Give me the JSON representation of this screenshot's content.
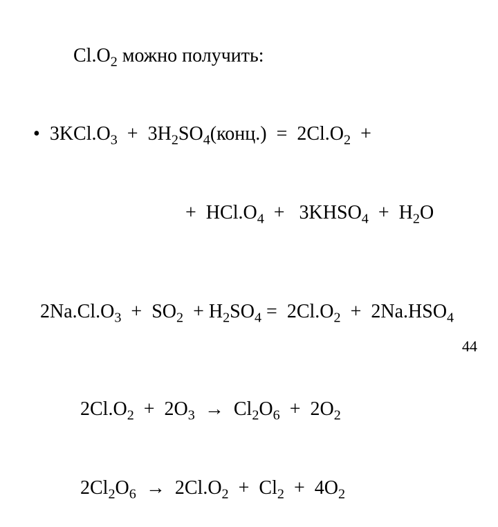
{
  "text_color": "#000000",
  "background_color": "#ffffff",
  "font_family": "Times New Roman",
  "base_fontsize_pt": 21,
  "page_number": "44",
  "title": {
    "compound": "Cl.O",
    "compound_sub": "2",
    "rest": " можно получить:"
  },
  "eq1": {
    "bullet": "•  ",
    "l1_parts": [
      {
        "t": "3KCl.O"
      },
      {
        "s": "3"
      },
      {
        "t": "  +  3H"
      },
      {
        "s": "2"
      },
      {
        "t": "SO"
      },
      {
        "s": "4"
      },
      {
        "t": "(конц.)  =  2Cl.O"
      },
      {
        "s": "2"
      },
      {
        "t": "  +"
      }
    ],
    "l2_parts": [
      {
        "t": "+  HCl.O"
      },
      {
        "s": "4"
      },
      {
        "t": "  +   3KHSO"
      },
      {
        "s": "4"
      },
      {
        "t": "  +  H"
      },
      {
        "s": "2"
      },
      {
        "t": "O"
      }
    ]
  },
  "eq2_parts": [
    {
      "t": "2Na.Cl.O"
    },
    {
      "s": "3"
    },
    {
      "t": "  +  SO"
    },
    {
      "s": "2"
    },
    {
      "t": "  + H"
    },
    {
      "s": "2"
    },
    {
      "t": "SO"
    },
    {
      "s": "4"
    },
    {
      "t": " =  2Cl.O"
    },
    {
      "s": "2"
    },
    {
      "t": "  +  2Na.HSO"
    },
    {
      "s": "4"
    }
  ],
  "eq3_parts": [
    {
      "t": "2Cl.O"
    },
    {
      "s": "2"
    },
    {
      "t": "  +  2O"
    },
    {
      "s": "3"
    },
    {
      "t": "  →  Cl"
    },
    {
      "s": "2"
    },
    {
      "t": "O"
    },
    {
      "s": "6"
    },
    {
      "t": "  +  2O"
    },
    {
      "s": "2"
    }
  ],
  "eq4_parts": [
    {
      "t": "2Cl"
    },
    {
      "s": "2"
    },
    {
      "t": "O"
    },
    {
      "s": "6"
    },
    {
      "t": "  →  2Cl.O"
    },
    {
      "s": "2"
    },
    {
      "t": "  +  Cl"
    },
    {
      "s": "2"
    },
    {
      "t": "  +  4O"
    },
    {
      "s": "2"
    }
  ]
}
